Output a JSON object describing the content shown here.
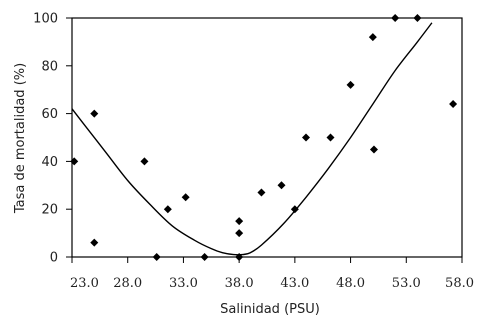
{
  "chart_data": {
    "type": "scatter",
    "title": "",
    "xlabel": "Salinidad (PSU)",
    "ylabel": "Tasa de mortalidad (%)",
    "xlim": [
      23.0,
      58.0
    ],
    "ylim": [
      0,
      100
    ],
    "xticks": [
      23.0,
      28.0,
      33.0,
      38.0,
      43.0,
      48.0,
      53.0,
      58.0
    ],
    "xtick_labels": [
      "23.0",
      "28.0",
      "33.0",
      "38.0",
      "43.0",
      "48.0",
      "53.0",
      "58.0"
    ],
    "yticks": [
      0,
      20,
      40,
      60,
      80,
      100
    ],
    "ytick_labels": [
      "0",
      "20",
      "40",
      "60",
      "80",
      "100"
    ],
    "grid": false,
    "legend": "none",
    "marker": "diamond",
    "marker_color": "#000000",
    "points": [
      {
        "x": 23.2,
        "y": 40
      },
      {
        "x": 25.0,
        "y": 6
      },
      {
        "x": 25.0,
        "y": 60
      },
      {
        "x": 29.5,
        "y": 40
      },
      {
        "x": 30.6,
        "y": 0
      },
      {
        "x": 31.6,
        "y": 20
      },
      {
        "x": 33.2,
        "y": 25
      },
      {
        "x": 34.9,
        "y": 0
      },
      {
        "x": 38.0,
        "y": 15
      },
      {
        "x": 38.0,
        "y": 10
      },
      {
        "x": 38.0,
        "y": 0
      },
      {
        "x": 40.0,
        "y": 27
      },
      {
        "x": 41.8,
        "y": 30
      },
      {
        "x": 43.0,
        "y": 20
      },
      {
        "x": 44.0,
        "y": 50
      },
      {
        "x": 46.2,
        "y": 50
      },
      {
        "x": 48.0,
        "y": 72
      },
      {
        "x": 50.0,
        "y": 92
      },
      {
        "x": 50.1,
        "y": 45
      },
      {
        "x": 52.0,
        "y": 100
      },
      {
        "x": 54.0,
        "y": 100
      },
      {
        "x": 57.2,
        "y": 64
      }
    ],
    "fit_curve": {
      "type": "line",
      "color": "#000000",
      "x": [
        23.0,
        24.0,
        26.0,
        28.0,
        30.0,
        32.0,
        34.0,
        35.5,
        36.5,
        37.5,
        38.3,
        39.0,
        40.0,
        42.0,
        44.0,
        46.0,
        48.0,
        50.0,
        52.0,
        54.0,
        55.3
      ],
      "y": [
        62,
        56,
        44,
        32,
        22,
        13,
        7,
        3.5,
        1.8,
        1.0,
        1.0,
        1.8,
        5,
        14,
        25,
        37,
        50,
        64,
        78,
        90,
        98
      ]
    }
  }
}
